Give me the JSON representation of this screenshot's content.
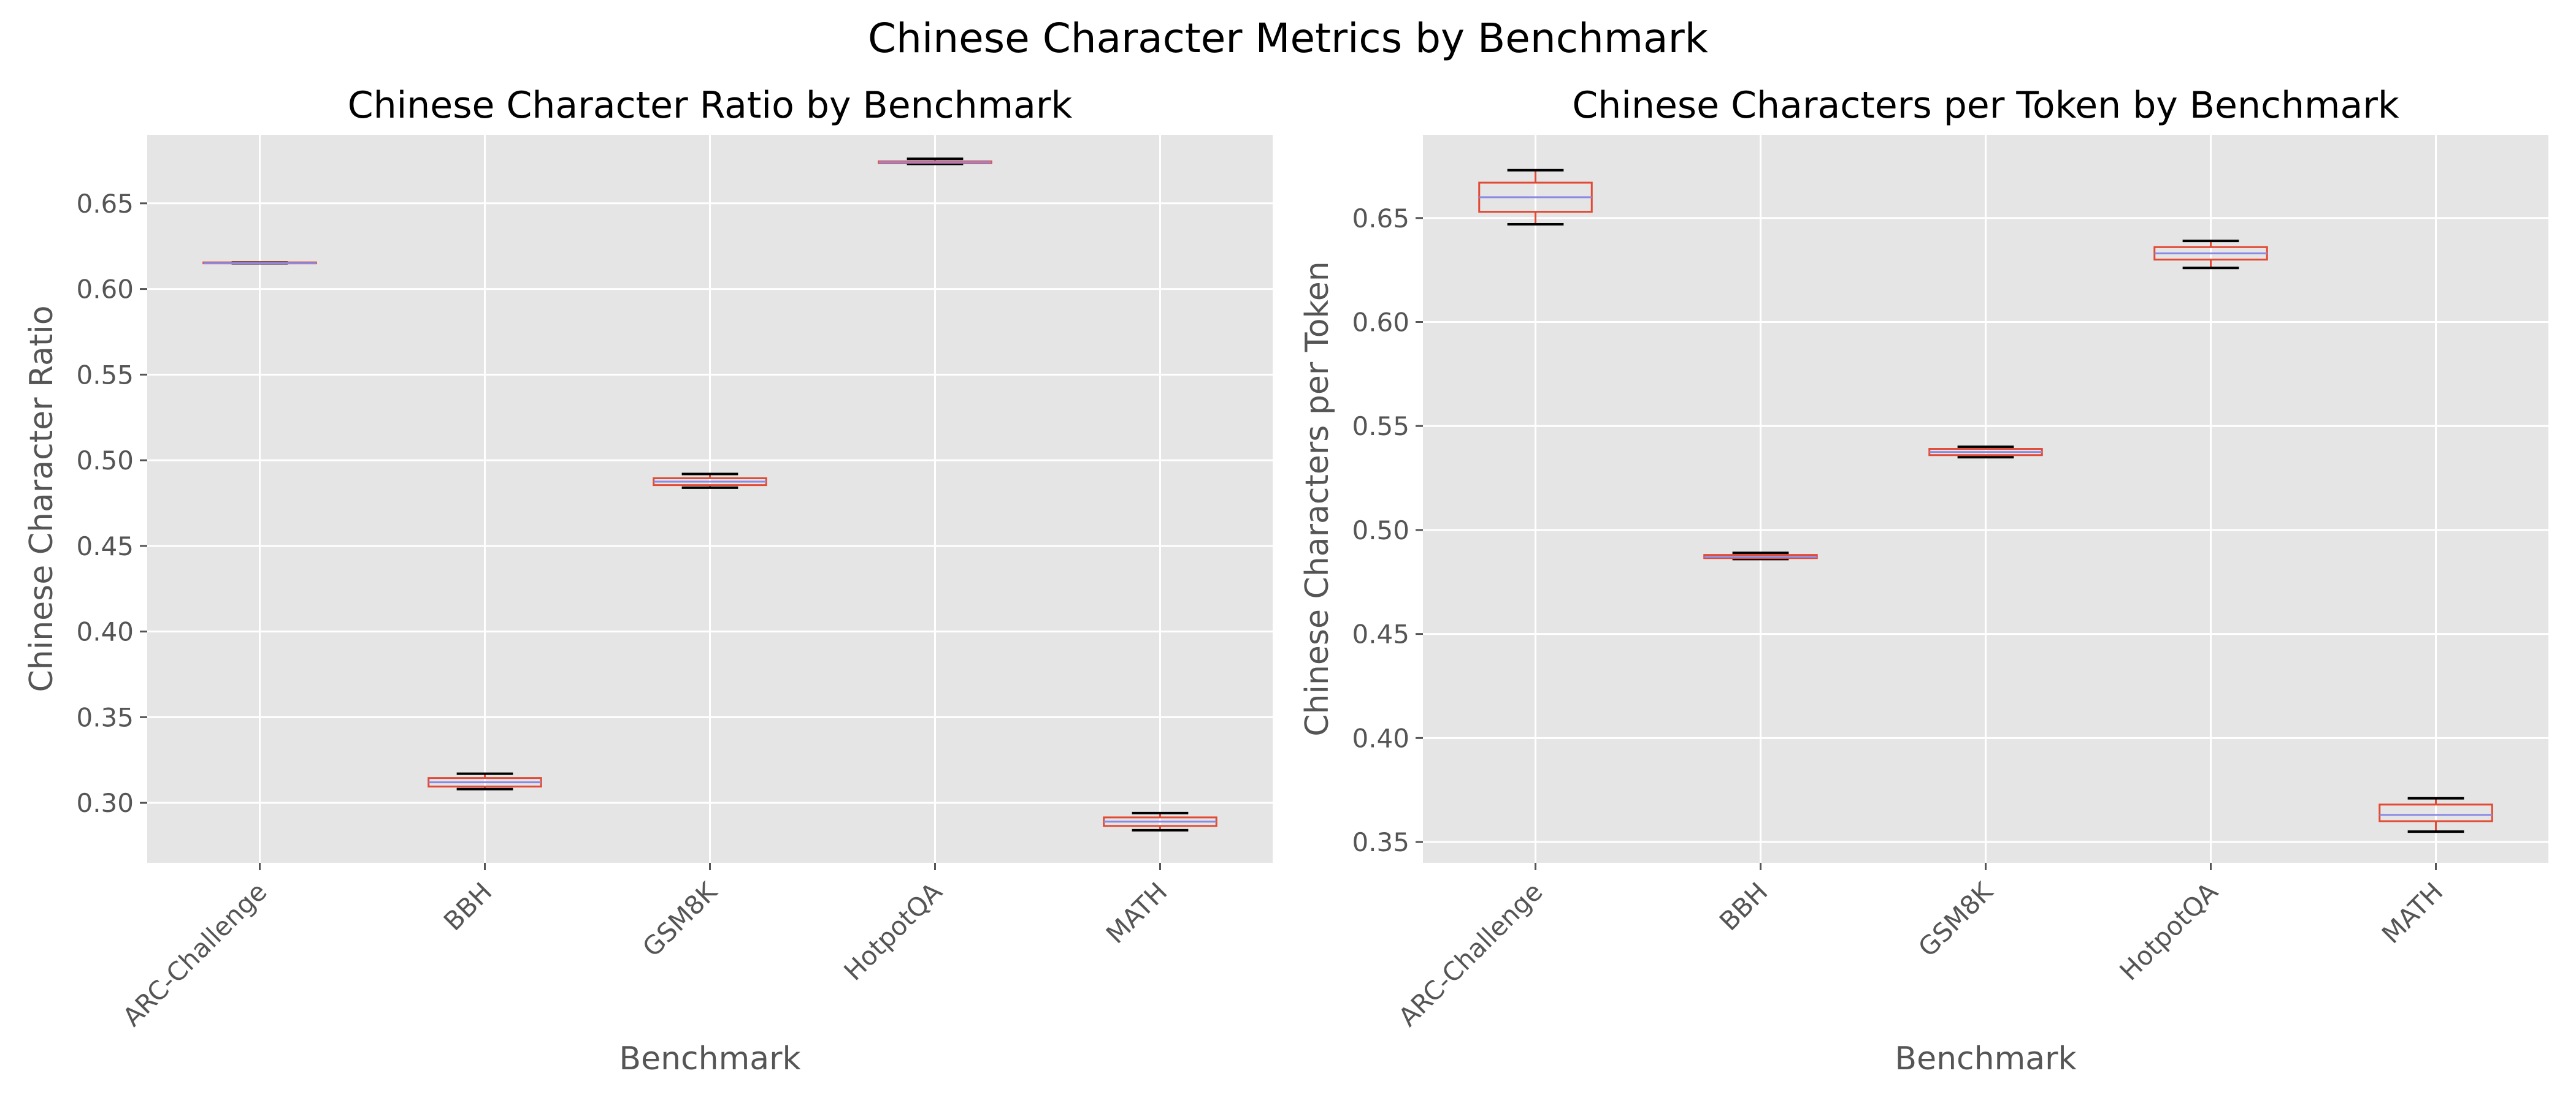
{
  "figure_title": "Chinese Character Metrics by Benchmark",
  "colors": {
    "background": "#ffffff",
    "axes_face": "#e5e5e5",
    "grid": "#ffffff",
    "box": "#e24a33",
    "median": "#8a8ae6",
    "cap": "#000000",
    "text": "#555555"
  },
  "chart_data": [
    {
      "type": "box",
      "title": "Chinese Character Ratio by Benchmark",
      "xlabel": "Benchmark",
      "ylabel": "Chinese Character Ratio",
      "categories": [
        "ARC-Challenge",
        "BBH",
        "GSM8K",
        "HotpotQA",
        "MATH"
      ],
      "ylim": [
        0.265,
        0.69
      ],
      "yticks": [
        0.3,
        0.35,
        0.4,
        0.45,
        0.5,
        0.55,
        0.6,
        0.65
      ],
      "ytick_labels": [
        "0.30",
        "0.35",
        "0.40",
        "0.45",
        "0.50",
        "0.55",
        "0.60",
        "0.65"
      ],
      "grid": true,
      "boxes": [
        {
          "category": "ARC-Challenge",
          "whislo": 0.615,
          "q1": 0.615,
          "med": 0.615,
          "q3": 0.6155,
          "whishi": 0.6155
        },
        {
          "category": "BBH",
          "whislo": 0.308,
          "q1": 0.3095,
          "med": 0.312,
          "q3": 0.3145,
          "whishi": 0.317
        },
        {
          "category": "GSM8K",
          "whislo": 0.484,
          "q1": 0.4855,
          "med": 0.4875,
          "q3": 0.4895,
          "whishi": 0.492
        },
        {
          "category": "HotpotQA",
          "whislo": 0.673,
          "q1": 0.6735,
          "med": 0.674,
          "q3": 0.6745,
          "whishi": 0.676
        },
        {
          "category": "MATH",
          "whislo": 0.284,
          "q1": 0.2865,
          "med": 0.289,
          "q3": 0.2915,
          "whishi": 0.294
        }
      ]
    },
    {
      "type": "box",
      "title": "Chinese Characters per Token by Benchmark",
      "xlabel": "Benchmark",
      "ylabel": "Chinese Characters per Token",
      "categories": [
        "ARC-Challenge",
        "BBH",
        "GSM8K",
        "HotpotQA",
        "MATH"
      ],
      "ylim": [
        0.34,
        0.69
      ],
      "yticks": [
        0.35,
        0.4,
        0.45,
        0.5,
        0.55,
        0.6,
        0.65
      ],
      "ytick_labels": [
        "0.35",
        "0.40",
        "0.45",
        "0.50",
        "0.55",
        "0.60",
        "0.65"
      ],
      "grid": true,
      "boxes": [
        {
          "category": "ARC-Challenge",
          "whislo": 0.647,
          "q1": 0.653,
          "med": 0.66,
          "q3": 0.667,
          "whishi": 0.673
        },
        {
          "category": "BBH",
          "whislo": 0.486,
          "q1": 0.4865,
          "med": 0.487,
          "q3": 0.488,
          "whishi": 0.489
        },
        {
          "category": "GSM8K",
          "whislo": 0.535,
          "q1": 0.536,
          "med": 0.5375,
          "q3": 0.539,
          "whishi": 0.54
        },
        {
          "category": "HotpotQA",
          "whislo": 0.626,
          "q1": 0.63,
          "med": 0.633,
          "q3": 0.636,
          "whishi": 0.639
        },
        {
          "category": "MATH",
          "whislo": 0.355,
          "q1": 0.36,
          "med": 0.363,
          "q3": 0.368,
          "whishi": 0.371
        }
      ]
    }
  ]
}
